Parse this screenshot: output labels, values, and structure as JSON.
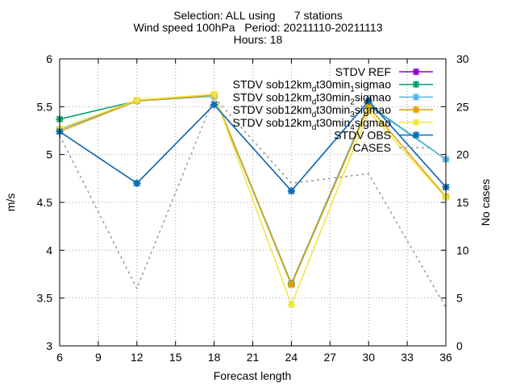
{
  "chart_data": {
    "type": "line",
    "title_lines": [
      "Selection: ALL using      7 stations",
      "Wind speed 100hPa   Period: 20211110-20211113",
      "Hours: 18"
    ],
    "xlabel": "Forecast length",
    "ylabel": "m/s",
    "y2label": "No cases",
    "xlim": [
      6,
      36
    ],
    "ylim": [
      3,
      6
    ],
    "y2lim": [
      0,
      30
    ],
    "xticks": [
      6,
      9,
      12,
      15,
      18,
      21,
      24,
      27,
      30,
      33,
      36
    ],
    "yticks": [
      3,
      3.5,
      4,
      4.5,
      5,
      5.5,
      6
    ],
    "y2ticks": [
      0,
      5,
      10,
      15,
      20,
      25,
      30
    ],
    "grid": true,
    "legend_position": "top-right",
    "x": [
      6,
      12,
      18,
      24,
      30,
      36
    ],
    "series": [
      {
        "name": "STDV REF",
        "color": "#9400d3",
        "axis": "y1",
        "dashed": false,
        "marker": true,
        "values": [
          5.24,
          4.7,
          5.52,
          4.62,
          5.56,
          4.66
        ]
      },
      {
        "name": "STDV sob12km_dt30min_1sigmao",
        "color": "#009e73",
        "axis": "y1",
        "dashed": false,
        "marker": true,
        "values": [
          5.37,
          5.56,
          5.62,
          3.65,
          5.52,
          4.95
        ]
      },
      {
        "name": "STDV sob12km_dt30min_2sigmao",
        "color": "#56b4e9",
        "axis": "y1",
        "dashed": false,
        "marker": true,
        "values": [
          5.26,
          5.56,
          5.61,
          3.64,
          5.51,
          4.95
        ]
      },
      {
        "name": "STDV sob12km_dt30min_3sigmao",
        "color": "#e69f00",
        "axis": "y1",
        "dashed": false,
        "marker": true,
        "values": [
          5.24,
          5.56,
          5.62,
          3.64,
          5.5,
          4.56
        ]
      },
      {
        "name": "STDV sob12km_dt30min_4sigmao",
        "color": "#f0e442",
        "axis": "y1",
        "dashed": false,
        "marker": true,
        "values": [
          5.27,
          5.57,
          5.63,
          3.43,
          5.45,
          4.55
        ]
      },
      {
        "name": "STDV OBS",
        "color": "#0072b2",
        "axis": "y1",
        "dashed": false,
        "marker": true,
        "values": [
          5.24,
          4.7,
          5.52,
          4.62,
          5.56,
          4.66
        ]
      },
      {
        "name": "CASES",
        "color": "#999999",
        "axis": "y2",
        "dashed": true,
        "marker": false,
        "values": [
          22,
          6,
          26,
          17,
          18,
          4
        ]
      }
    ]
  }
}
